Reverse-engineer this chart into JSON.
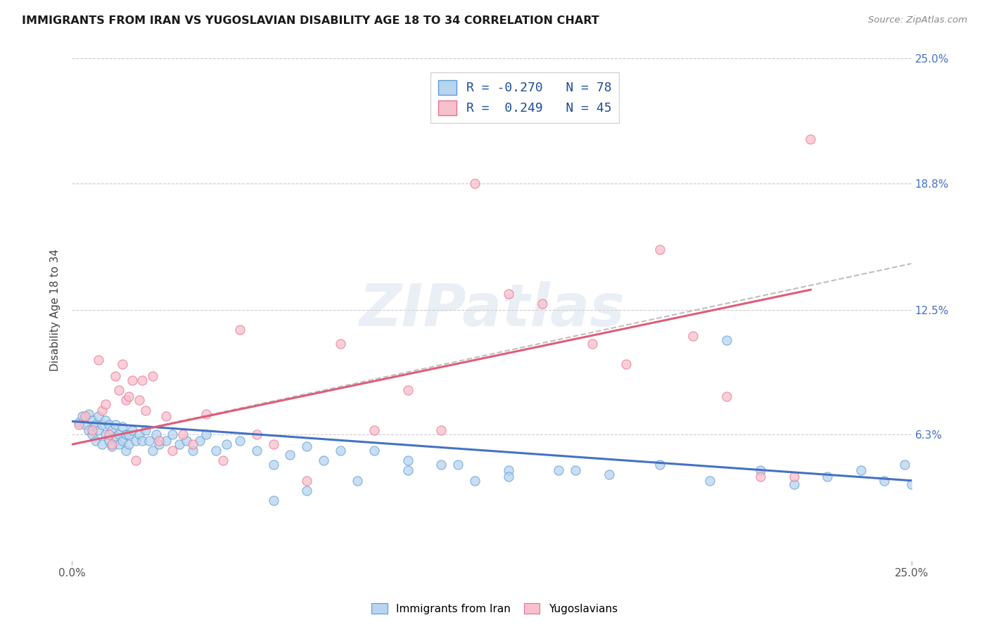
{
  "title": "IMMIGRANTS FROM IRAN VS YUGOSLAVIAN DISABILITY AGE 18 TO 34 CORRELATION CHART",
  "source": "Source: ZipAtlas.com",
  "ylabel": "Disability Age 18 to 34",
  "xlim": [
    0.0,
    0.25
  ],
  "ylim": [
    0.0,
    0.25
  ],
  "xtick_labels": [
    "0.0%",
    "25.0%"
  ],
  "ytick_positions": [
    0.063,
    0.125,
    0.188,
    0.25
  ],
  "right_ytick_labels": [
    "6.3%",
    "12.5%",
    "18.8%",
    "25.0%"
  ],
  "legend_iran_label": "Immigrants from Iran",
  "legend_yugo_label": "Yugoslavians",
  "iran_R": "-0.270",
  "iran_N": "78",
  "yugo_R": "0.249",
  "yugo_N": "45",
  "iran_fill": "#b8d4ee",
  "iran_edge": "#5b9bd5",
  "yugo_fill": "#f7c0cc",
  "yugo_edge": "#e87090",
  "iran_line_color": "#4472c4",
  "yugo_line_color": "#e05c7a",
  "dash_line_color": "#b0b0b0",
  "background_color": "#ffffff",
  "grid_color": "#cccccc",
  "legend_text_color": "#1f4e9c",
  "title_color": "#1a1a1a",
  "source_color": "#888888",
  "ylabel_color": "#444444",
  "right_axis_color": "#4472c4",
  "iran_scatter_x": [
    0.002,
    0.003,
    0.004,
    0.005,
    0.005,
    0.006,
    0.006,
    0.007,
    0.007,
    0.008,
    0.008,
    0.009,
    0.009,
    0.01,
    0.01,
    0.011,
    0.011,
    0.012,
    0.012,
    0.013,
    0.013,
    0.014,
    0.014,
    0.015,
    0.015,
    0.016,
    0.016,
    0.017,
    0.017,
    0.018,
    0.019,
    0.02,
    0.021,
    0.022,
    0.023,
    0.024,
    0.025,
    0.026,
    0.028,
    0.03,
    0.032,
    0.034,
    0.036,
    0.038,
    0.04,
    0.043,
    0.046,
    0.05,
    0.055,
    0.06,
    0.065,
    0.07,
    0.075,
    0.08,
    0.09,
    0.1,
    0.11,
    0.12,
    0.13,
    0.145,
    0.16,
    0.175,
    0.19,
    0.205,
    0.215,
    0.225,
    0.235,
    0.242,
    0.248,
    0.25,
    0.195,
    0.15,
    0.13,
    0.115,
    0.1,
    0.085,
    0.07,
    0.06
  ],
  "iran_scatter_y": [
    0.069,
    0.072,
    0.068,
    0.073,
    0.065,
    0.07,
    0.063,
    0.068,
    0.06,
    0.072,
    0.065,
    0.068,
    0.058,
    0.07,
    0.063,
    0.068,
    0.06,
    0.065,
    0.057,
    0.068,
    0.062,
    0.063,
    0.058,
    0.067,
    0.06,
    0.063,
    0.055,
    0.063,
    0.058,
    0.065,
    0.06,
    0.063,
    0.06,
    0.065,
    0.06,
    0.055,
    0.063,
    0.058,
    0.06,
    0.063,
    0.058,
    0.06,
    0.055,
    0.06,
    0.063,
    0.055,
    0.058,
    0.06,
    0.055,
    0.048,
    0.053,
    0.057,
    0.05,
    0.055,
    0.055,
    0.05,
    0.048,
    0.04,
    0.045,
    0.045,
    0.043,
    0.048,
    0.04,
    0.045,
    0.038,
    0.042,
    0.045,
    0.04,
    0.048,
    0.038,
    0.11,
    0.045,
    0.042,
    0.048,
    0.045,
    0.04,
    0.035,
    0.03
  ],
  "yugo_scatter_x": [
    0.002,
    0.004,
    0.006,
    0.008,
    0.009,
    0.01,
    0.011,
    0.012,
    0.013,
    0.014,
    0.015,
    0.016,
    0.017,
    0.018,
    0.019,
    0.02,
    0.021,
    0.022,
    0.024,
    0.026,
    0.028,
    0.03,
    0.033,
    0.036,
    0.04,
    0.045,
    0.05,
    0.055,
    0.06,
    0.07,
    0.08,
    0.09,
    0.1,
    0.11,
    0.12,
    0.13,
    0.14,
    0.155,
    0.165,
    0.175,
    0.185,
    0.195,
    0.205,
    0.215,
    0.22
  ],
  "yugo_scatter_y": [
    0.068,
    0.072,
    0.065,
    0.1,
    0.075,
    0.078,
    0.063,
    0.058,
    0.092,
    0.085,
    0.098,
    0.08,
    0.082,
    0.09,
    0.05,
    0.08,
    0.09,
    0.075,
    0.092,
    0.06,
    0.072,
    0.055,
    0.063,
    0.058,
    0.073,
    0.05,
    0.115,
    0.063,
    0.058,
    0.04,
    0.108,
    0.065,
    0.085,
    0.065,
    0.188,
    0.133,
    0.128,
    0.108,
    0.098,
    0.155,
    0.112,
    0.082,
    0.042,
    0.042,
    0.21
  ],
  "iran_trend_x": [
    0.0,
    0.25
  ],
  "iran_trend_y": [
    0.0695,
    0.04
  ],
  "yugo_trend_x": [
    0.0,
    0.22
  ],
  "yugo_trend_y": [
    0.058,
    0.135
  ],
  "dash_trend_x": [
    0.0,
    0.25
  ],
  "dash_trend_y": [
    0.058,
    0.148
  ],
  "watermark": "ZIPatlas"
}
